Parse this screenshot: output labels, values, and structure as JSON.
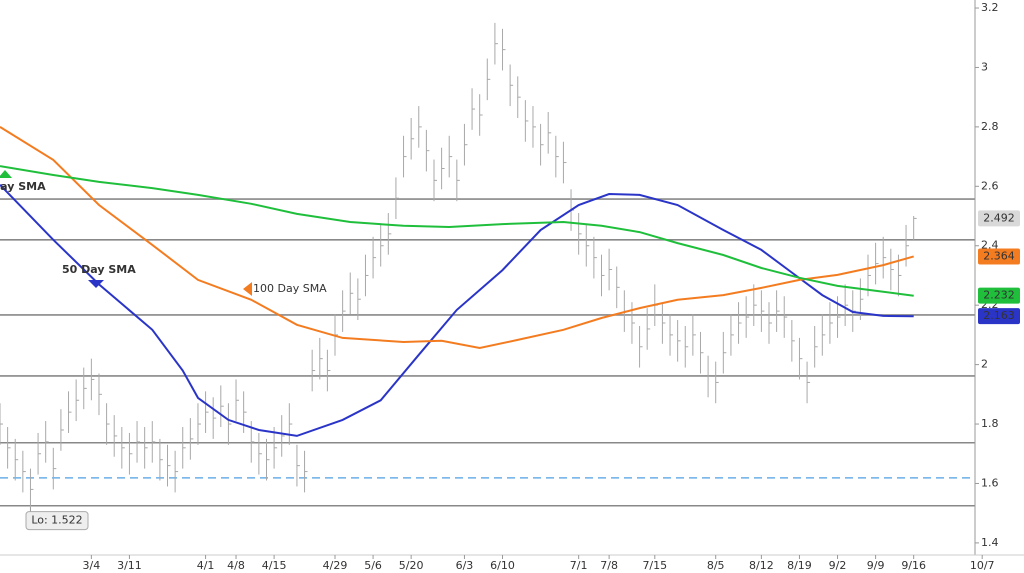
{
  "chart_data": {
    "type": "ohlc",
    "xlim": [
      0,
      129.5
    ],
    "xticks": [
      {
        "value": 12,
        "label": "3/4"
      },
      {
        "value": 17,
        "label": "3/11"
      },
      {
        "value": 27,
        "label": "4/1"
      },
      {
        "value": 31,
        "label": "4/8"
      },
      {
        "value": 36,
        "label": "4/15"
      },
      {
        "value": 44,
        "label": "4/29"
      },
      {
        "value": 49,
        "label": "5/6"
      },
      {
        "value": 54,
        "label": "5/20"
      },
      {
        "value": 61,
        "label": "6/3"
      },
      {
        "value": 66,
        "label": "6/10"
      },
      {
        "value": 76,
        "label": "7/1"
      },
      {
        "value": 80,
        "label": "7/8"
      },
      {
        "value": 86,
        "label": "7/15"
      },
      {
        "value": 94,
        "label": "8/5"
      },
      {
        "value": 100,
        "label": "8/12"
      },
      {
        "value": 105,
        "label": "8/19"
      },
      {
        "value": 110,
        "label": "9/2"
      },
      {
        "value": 115,
        "label": "9/9"
      },
      {
        "value": 120,
        "label": "9/16"
      },
      {
        "value": 129,
        "label": "10/7"
      }
    ],
    "ylim": [
      1.366,
      3.227
    ],
    "yticks": [
      1.4,
      1.6,
      1.8,
      2,
      2.2,
      2.4,
      2.6,
      2.8,
      3,
      3.2
    ],
    "bar_color": "#a8a8a8",
    "high": [
      1.87,
      1.79,
      1.75,
      1.71,
      1.65,
      1.77,
      1.81,
      1.72,
      1.85,
      1.91,
      1.95,
      1.99,
      2.02,
      1.97,
      1.87,
      1.83,
      1.79,
      1.77,
      1.81,
      1.79,
      1.81,
      1.75,
      1.73,
      1.71,
      1.79,
      1.82,
      1.87,
      1.91,
      1.89,
      1.93,
      1.87,
      1.95,
      1.91,
      1.81,
      1.77,
      1.75,
      1.79,
      1.83,
      1.87,
      1.73,
      1.71,
      2.05,
      2.09,
      2.05,
      2.17,
      2.25,
      2.31,
      2.29,
      2.37,
      2.43,
      2.47,
      2.51,
      2.63,
      2.77,
      2.83,
      2.87,
      2.79,
      2.69,
      2.73,
      2.77,
      2.69,
      2.81,
      2.93,
      2.91,
      3.03,
      3.15,
      3.13,
      3.01,
      2.97,
      2.89,
      2.87,
      2.81,
      2.85,
      2.77,
      2.75,
      2.59,
      2.51,
      2.47,
      2.43,
      2.37,
      2.39,
      2.33,
      2.25,
      2.21,
      2.13,
      2.19,
      2.27,
      2.21,
      2.17,
      2.15,
      2.13,
      2.17,
      2.11,
      2.03,
      2.01,
      2.11,
      2.17,
      2.21,
      2.23,
      2.27,
      2.25,
      2.21,
      2.25,
      2.23,
      2.15,
      2.09,
      2.01,
      2.13,
      2.17,
      2.21,
      2.23,
      2.27,
      2.25,
      2.29,
      2.37,
      2.41,
      2.43,
      2.39,
      2.37,
      2.47,
      2.5
    ],
    "low": [
      1.73,
      1.65,
      1.61,
      1.57,
      1.522,
      1.63,
      1.67,
      1.58,
      1.71,
      1.77,
      1.81,
      1.85,
      1.88,
      1.83,
      1.73,
      1.69,
      1.65,
      1.63,
      1.67,
      1.65,
      1.67,
      1.61,
      1.59,
      1.57,
      1.65,
      1.68,
      1.73,
      1.77,
      1.75,
      1.79,
      1.73,
      1.81,
      1.77,
      1.67,
      1.63,
      1.61,
      1.65,
      1.69,
      1.73,
      1.59,
      1.57,
      1.91,
      1.95,
      1.91,
      2.03,
      2.11,
      2.17,
      2.15,
      2.23,
      2.29,
      2.33,
      2.37,
      2.49,
      2.63,
      2.69,
      2.73,
      2.65,
      2.55,
      2.59,
      2.63,
      2.55,
      2.67,
      2.79,
      2.77,
      2.89,
      3.01,
      2.99,
      2.87,
      2.83,
      2.75,
      2.73,
      2.67,
      2.71,
      2.63,
      2.61,
      2.45,
      2.37,
      2.33,
      2.29,
      2.23,
      2.25,
      2.19,
      2.11,
      2.07,
      1.99,
      2.05,
      2.13,
      2.07,
      2.03,
      2.01,
      1.99,
      2.03,
      1.97,
      1.89,
      1.87,
      1.97,
      2.03,
      2.07,
      2.09,
      2.13,
      2.11,
      2.07,
      2.11,
      2.09,
      2.01,
      1.95,
      1.87,
      1.99,
      2.03,
      2.07,
      2.09,
      2.13,
      2.11,
      2.15,
      2.23,
      2.27,
      2.29,
      2.25,
      2.23,
      2.33,
      2.42
    ],
    "close": [
      1.8,
      1.72,
      1.68,
      1.64,
      1.58,
      1.7,
      1.74,
      1.65,
      1.78,
      1.84,
      1.88,
      1.92,
      1.95,
      1.9,
      1.8,
      1.76,
      1.72,
      1.7,
      1.74,
      1.72,
      1.74,
      1.68,
      1.66,
      1.64,
      1.72,
      1.75,
      1.8,
      1.84,
      1.82,
      1.86,
      1.8,
      1.88,
      1.84,
      1.74,
      1.7,
      1.68,
      1.72,
      1.76,
      1.8,
      1.66,
      1.64,
      1.98,
      2.02,
      1.98,
      2.1,
      2.18,
      2.24,
      2.22,
      2.3,
      2.36,
      2.4,
      2.44,
      2.56,
      2.7,
      2.76,
      2.8,
      2.72,
      2.62,
      2.66,
      2.7,
      2.62,
      2.74,
      2.86,
      2.84,
      2.96,
      3.08,
      3.06,
      2.94,
      2.9,
      2.82,
      2.8,
      2.74,
      2.78,
      2.7,
      2.68,
      2.52,
      2.44,
      2.4,
      2.36,
      2.3,
      2.32,
      2.26,
      2.18,
      2.14,
      2.06,
      2.12,
      2.2,
      2.14,
      2.1,
      2.08,
      2.06,
      2.1,
      2.04,
      1.96,
      1.94,
      2.04,
      2.1,
      2.14,
      2.16,
      2.2,
      2.18,
      2.14,
      2.18,
      2.16,
      2.08,
      2.02,
      1.94,
      2.06,
      2.1,
      2.14,
      2.16,
      2.2,
      2.18,
      2.22,
      2.3,
      2.34,
      2.36,
      2.32,
      2.3,
      2.4,
      2.492
    ],
    "last_label": "2.492",
    "series": [
      {
        "name": "50 Day SMA",
        "color": "#2a35c8",
        "x": [
          0,
          7,
          13,
          20,
          24,
          26,
          30,
          34,
          39,
          45,
          50,
          55,
          60,
          66,
          71,
          76,
          80,
          84,
          89,
          95,
          100,
          104,
          108,
          112,
          116,
          120
        ],
        "values": [
          2.605,
          2.42,
          2.27,
          2.117,
          1.98,
          1.888,
          1.814,
          1.78,
          1.76,
          1.814,
          1.88,
          2.033,
          2.184,
          2.318,
          2.453,
          2.537,
          2.574,
          2.571,
          2.537,
          2.453,
          2.386,
          2.31,
          2.234,
          2.177,
          2.164,
          2.163
        ],
        "last_label": "2.163"
      },
      {
        "name": "100  Day SMA",
        "color": "#f47c20",
        "x": [
          0,
          7,
          13,
          20,
          26,
          33,
          39,
          45,
          53,
          58,
          63,
          68,
          74,
          79,
          84,
          89,
          95,
          100,
          105,
          110,
          116,
          120
        ],
        "values": [
          2.8,
          2.689,
          2.537,
          2.403,
          2.285,
          2.218,
          2.134,
          2.09,
          2.076,
          2.08,
          2.056,
          2.083,
          2.117,
          2.157,
          2.19,
          2.218,
          2.234,
          2.258,
          2.285,
          2.302,
          2.335,
          2.364
        ],
        "last_label": "2.364"
      },
      {
        "name": "Day SMA",
        "color": "#1fbf3c",
        "x": [
          0,
          7,
          13,
          20,
          26,
          33,
          39,
          46,
          53,
          59,
          66,
          74,
          79,
          84,
          89,
          95,
          100,
          105,
          110,
          116,
          120
        ],
        "values": [
          2.668,
          2.638,
          2.615,
          2.594,
          2.571,
          2.541,
          2.507,
          2.48,
          2.467,
          2.463,
          2.473,
          2.48,
          2.467,
          2.446,
          2.409,
          2.369,
          2.325,
          2.292,
          2.265,
          2.245,
          2.232
        ],
        "last_label": "2.232"
      }
    ],
    "hlines": [
      2.557,
      2.42,
      2.167,
      1.962,
      1.737,
      1.525
    ],
    "dashed_line": 1.619,
    "low_annotation": "Lo: 1.522"
  }
}
